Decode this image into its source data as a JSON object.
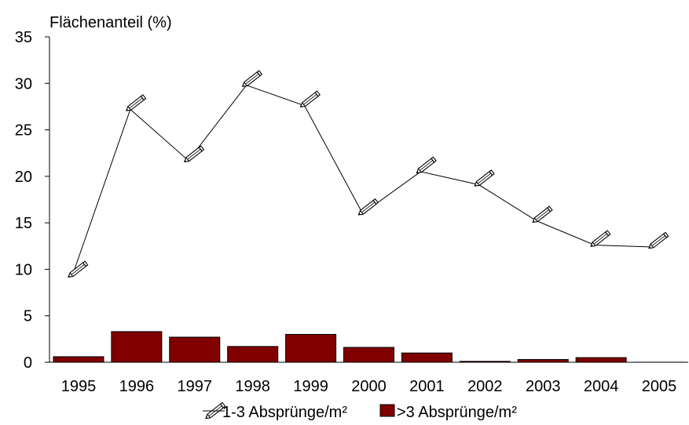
{
  "chart_data": {
    "type": "bar",
    "title": "",
    "ylabel": "Flächenanteil (%)",
    "xlabel": "",
    "ylim": [
      0,
      35
    ],
    "yticks": [
      0,
      5,
      10,
      15,
      20,
      25,
      30,
      35
    ],
    "categories": [
      "1995",
      "1996",
      "1997",
      "1998",
      "1999",
      "2000",
      "2001",
      "2002",
      "2003",
      "2004",
      "2005"
    ],
    "series": [
      {
        "name": "1-3 Absprünge/m²",
        "type": "line",
        "marker": "pencil-icon",
        "color": "#000000",
        "values": [
          9.3,
          27.2,
          21.7,
          29.8,
          27.6,
          16.0,
          20.5,
          19.1,
          15.2,
          12.6,
          12.4
        ]
      },
      {
        "name": ">3 Absprünge/m²",
        "type": "bar",
        "color": "#800000",
        "values": [
          0.6,
          3.3,
          2.7,
          1.7,
          3.0,
          1.6,
          1.0,
          0.1,
          0.3,
          0.5,
          0.0
        ]
      }
    ],
    "legend": "bottom"
  }
}
